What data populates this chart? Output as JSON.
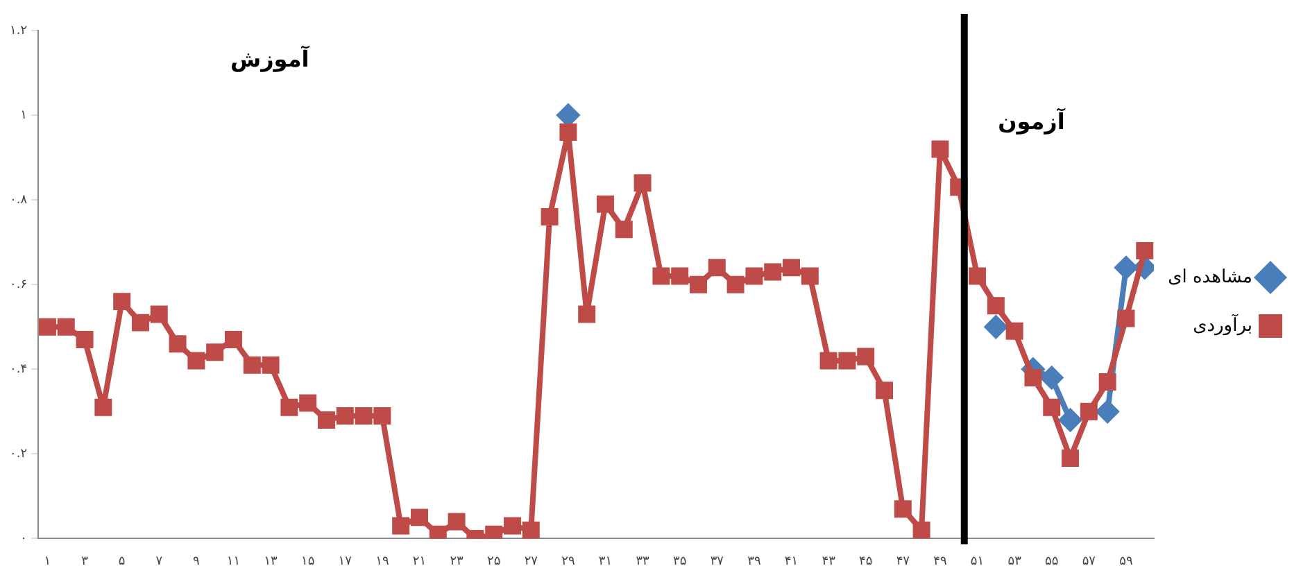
{
  "chart_data": {
    "type": "line",
    "x": [
      1,
      2,
      3,
      4,
      5,
      6,
      7,
      8,
      9,
      10,
      11,
      12,
      13,
      14,
      15,
      16,
      17,
      18,
      19,
      20,
      21,
      22,
      23,
      24,
      25,
      26,
      27,
      28,
      29,
      30,
      31,
      32,
      33,
      34,
      35,
      36,
      37,
      38,
      39,
      40,
      41,
      42,
      43,
      44,
      45,
      46,
      47,
      48,
      49,
      50,
      51,
      52,
      53,
      54,
      55,
      56,
      57,
      58,
      59,
      60
    ],
    "series": [
      {
        "name": "مشاهده ای",
        "color": "#4a7ebb",
        "marker": "diamond",
        "values": [
          null,
          null,
          null,
          null,
          null,
          null,
          null,
          null,
          null,
          null,
          null,
          null,
          null,
          null,
          null,
          null,
          null,
          null,
          null,
          null,
          null,
          null,
          null,
          null,
          null,
          null,
          null,
          null,
          1.0,
          null,
          null,
          null,
          null,
          null,
          null,
          null,
          null,
          null,
          null,
          null,
          null,
          null,
          null,
          null,
          null,
          null,
          null,
          null,
          null,
          null,
          null,
          0.5,
          null,
          0.4,
          0.38,
          0.28,
          null,
          0.3,
          0.64,
          0.64
        ]
      },
      {
        "name": "برآوردی",
        "color": "#be4b48",
        "marker": "square",
        "values": [
          0.5,
          0.5,
          0.47,
          0.31,
          0.56,
          0.51,
          0.53,
          0.46,
          0.42,
          0.44,
          0.47,
          0.41,
          0.41,
          0.31,
          0.32,
          0.28,
          0.29,
          0.29,
          0.29,
          0.03,
          0.05,
          0.01,
          0.04,
          0.0,
          0.01,
          0.03,
          0.02,
          0.76,
          0.96,
          0.53,
          0.79,
          0.73,
          0.84,
          0.62,
          0.62,
          0.6,
          0.64,
          0.6,
          0.62,
          0.63,
          0.64,
          0.62,
          0.42,
          0.42,
          0.43,
          0.35,
          0.07,
          0.02,
          0.92,
          0.83,
          0.62,
          0.55,
          0.49,
          0.38,
          0.31,
          0.19,
          0.3,
          0.37,
          0.52,
          0.68
        ]
      }
    ],
    "xlim": [
      0.5,
      60.5
    ],
    "xticks": [
      {
        "value": 1,
        "label": "۱"
      },
      {
        "value": 3,
        "label": "۳"
      },
      {
        "value": 5,
        "label": "۵"
      },
      {
        "value": 7,
        "label": "۷"
      },
      {
        "value": 9,
        "label": "۹"
      },
      {
        "value": 11,
        "label": "۱۱"
      },
      {
        "value": 13,
        "label": "۱۳"
      },
      {
        "value": 15,
        "label": "۱۵"
      },
      {
        "value": 17,
        "label": "۱۷"
      },
      {
        "value": 19,
        "label": "۱۹"
      },
      {
        "value": 21,
        "label": "۲۱"
      },
      {
        "value": 23,
        "label": "۲۳"
      },
      {
        "value": 25,
        "label": "۲۵"
      },
      {
        "value": 27,
        "label": "۲۷"
      },
      {
        "value": 29,
        "label": "۲۹"
      },
      {
        "value": 31,
        "label": "۳۱"
      },
      {
        "value": 33,
        "label": "۳۳"
      },
      {
        "value": 35,
        "label": "۳۵"
      },
      {
        "value": 37,
        "label": "۳۷"
      },
      {
        "value": 39,
        "label": "۳۹"
      },
      {
        "value": 41,
        "label": "۴۱"
      },
      {
        "value": 43,
        "label": "۴۳"
      },
      {
        "value": 45,
        "label": "۴۵"
      },
      {
        "value": 47,
        "label": "۴۷"
      },
      {
        "value": 49,
        "label": "۴۹"
      },
      {
        "value": 51,
        "label": "۵۱"
      },
      {
        "value": 53,
        "label": "۵۳"
      },
      {
        "value": 55,
        "label": "۵۵"
      },
      {
        "value": 57,
        "label": "۵۷"
      },
      {
        "value": 59,
        "label": "۵۹"
      }
    ],
    "ylim": [
      0,
      1.2
    ],
    "yticks": [
      {
        "value": 0,
        "label": "۰"
      },
      {
        "value": 0.2,
        "label": "۰.۲"
      },
      {
        "value": 0.4,
        "label": "۰.۴"
      },
      {
        "value": 0.6,
        "label": "۰.۶"
      },
      {
        "value": 0.8,
        "label": "۰.۸"
      },
      {
        "value": 1,
        "label": "۱"
      },
      {
        "value": 1.2,
        "label": "۱.۲"
      }
    ],
    "ref_lines": [
      {
        "axis": "x",
        "value": 50.3,
        "color": "#000000"
      }
    ],
    "annotations": [
      "آموزش",
      "آزمون"
    ],
    "legend": "right",
    "grid": false,
    "line_style": "solid"
  }
}
